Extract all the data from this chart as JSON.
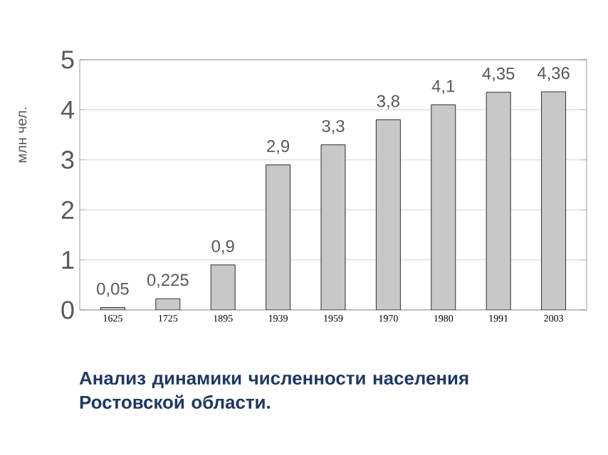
{
  "chart_data": {
    "type": "bar",
    "title": "Анализ динамики численности населения Ростовской области.",
    "ylabel": "млн чел.",
    "categories": [
      "1625",
      "1725",
      "1895",
      "1939",
      "1959",
      "1970",
      "1980",
      "1991",
      "2003"
    ],
    "values": [
      0.05,
      0.225,
      0.9,
      2.9,
      3.3,
      3.8,
      4.1,
      4.35,
      4.36
    ],
    "value_labels": [
      "0,05",
      "0,225",
      "0,9",
      "2,9",
      "3,3",
      "3,8",
      "4,1",
      "4,35",
      "4,36"
    ],
    "color": "#c8c8c8",
    "ylim": [
      0,
      5
    ],
    "yticks": [
      0,
      1,
      2,
      3,
      4,
      5
    ],
    "grid": "y"
  }
}
